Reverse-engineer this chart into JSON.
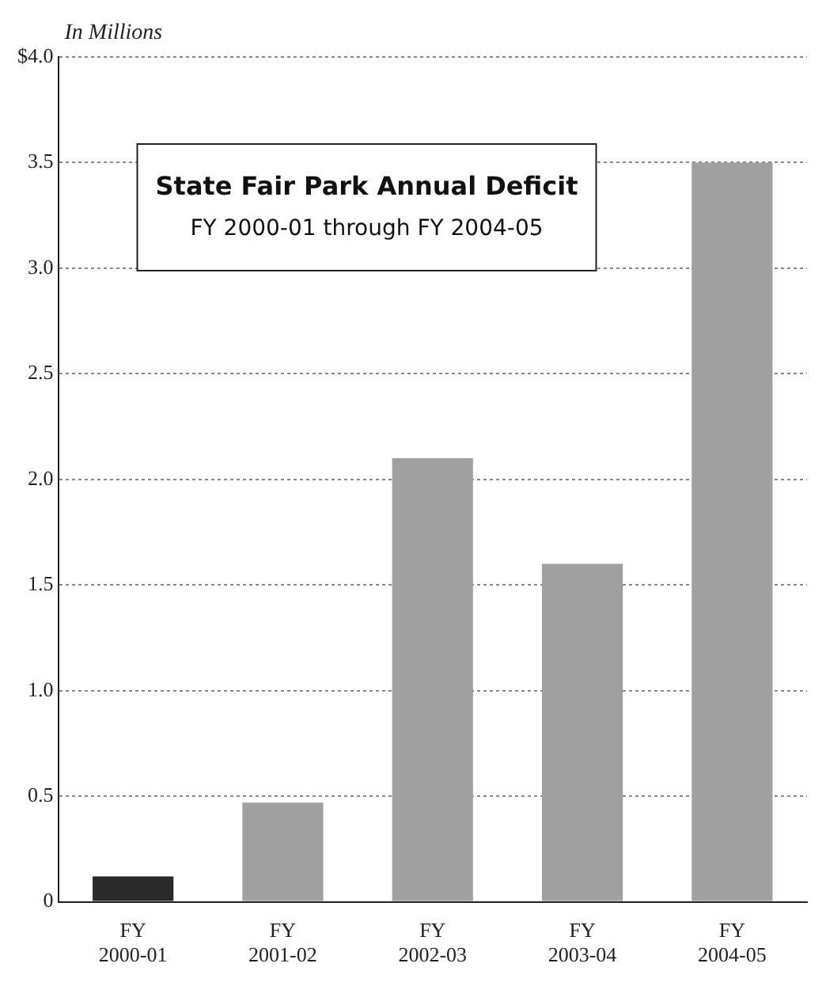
{
  "chart_data": {
    "type": "bar",
    "title": "State Fair Park Annual Deficit",
    "subtitle": "FY 2000-01 through FY 2004-05",
    "ylabel": "In Millions",
    "categories": [
      "FY 2000-01",
      "FY 2001-02",
      "FY 2002-03",
      "FY 2003-04",
      "FY 2004-05"
    ],
    "values": [
      0.12,
      0.47,
      2.1,
      1.6,
      3.5
    ],
    "colors": [
      "#2a2a2a",
      "#a0a0a0",
      "#a0a0a0",
      "#a0a0a0",
      "#a0a0a0"
    ],
    "ylim": [
      0,
      4
    ],
    "yticks": [
      0,
      0.5,
      {
        "value": 1,
        "label": "1.0"
      },
      1.5,
      {
        "value": 2,
        "label": "2.0"
      },
      2.5,
      {
        "value": 3,
        "label": "3.0"
      },
      3.5,
      {
        "value": 4,
        "label": "$4.0"
      }
    ],
    "grid": "y"
  }
}
